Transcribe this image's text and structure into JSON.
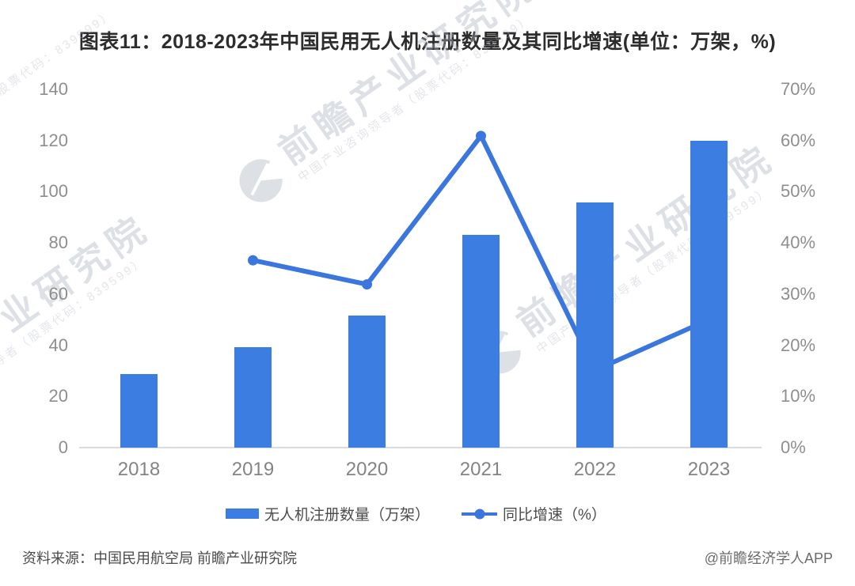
{
  "title": "图表11：2018-2023年中国民用无人机注册数量及其同比增速(单位：万架，%)",
  "chart_data": {
    "type": "bar+line",
    "categories": [
      "2018",
      "2019",
      "2020",
      "2021",
      "2022",
      "2023"
    ],
    "series": [
      {
        "name": "无人机注册数量（万架）",
        "type": "bar",
        "axis": "left",
        "color": "#3c7de2",
        "values": [
          28.7,
          39.2,
          51.7,
          83.2,
          95.8,
          119.8
        ]
      },
      {
        "name": "同比增速（%）",
        "type": "line",
        "axis": "right",
        "color": "#3a76dd",
        "values": [
          null,
          36.6,
          31.9,
          60.9,
          15.1,
          25.0
        ]
      }
    ],
    "left_axis": {
      "min": 0,
      "max": 140,
      "step": 20,
      "ticks": [
        "0",
        "20",
        "40",
        "60",
        "80",
        "100",
        "120",
        "140"
      ]
    },
    "right_axis": {
      "min": 0,
      "max": 70,
      "step": 10,
      "ticks": [
        "0%",
        "10%",
        "20%",
        "30%",
        "40%",
        "50%",
        "60%",
        "70%"
      ]
    },
    "grid": false,
    "legend_position": "bottom",
    "title": "图表11：2018-2023年中国民用无人机注册数量及其同比增速(单位：万架，%)"
  },
  "watermark": {
    "main": "前瞻产业研究院",
    "sub": "中国产业咨询领导者（股票代码：839599）"
  },
  "footer": {
    "source": "资料来源：中国民用航空局 前瞻产业研究院",
    "credit": "@前瞻经济学人APP"
  },
  "colors": {
    "bar": "#3c7de2",
    "line": "#3a76dd",
    "axis_text": "#8e8e8e",
    "baseline": "#d9dcde",
    "title_text": "#2d2d2d",
    "watermark": "#aab1be"
  }
}
